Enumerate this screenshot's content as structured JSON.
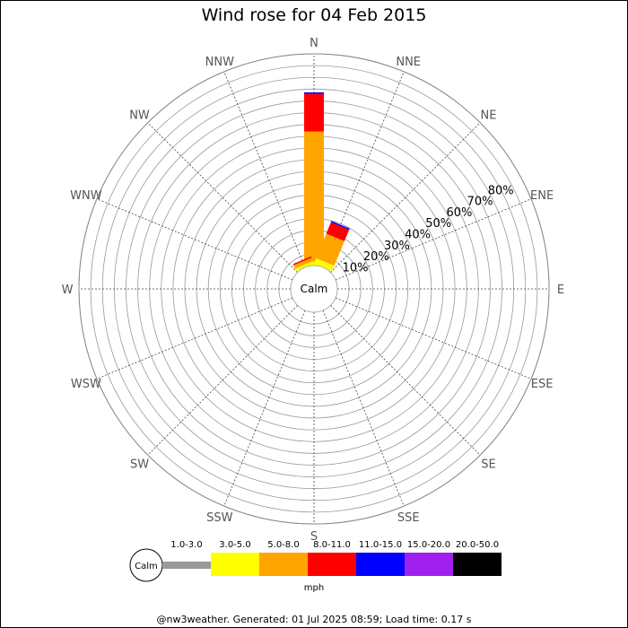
{
  "title": "Wind rose for 04 Feb 2015",
  "footer": "@nw3weather. Generated: 01 Jul 2025 08:59; Load time: 0.17 s",
  "chart_data": {
    "type": "wind-rose",
    "calm_label": "Calm",
    "unit_label": "mph",
    "directions": [
      "N",
      "NNE",
      "NE",
      "ENE",
      "E",
      "ESE",
      "SE",
      "SSE",
      "S",
      "SSW",
      "SW",
      "WSW",
      "W",
      "WNW",
      "NW",
      "NNW"
    ],
    "ring_labels": [
      "10%",
      "20%",
      "30%",
      "40%",
      "50%",
      "60%",
      "70%",
      "80%"
    ],
    "ring_values": [
      10,
      20,
      30,
      40,
      50,
      60,
      70,
      80
    ],
    "max_value": 90,
    "speed_bins": [
      {
        "label": "1.0-3.0",
        "color": "#999999"
      },
      {
        "label": "3.0-5.0",
        "color": "#ffff00"
      },
      {
        "label": "5.0-8.0",
        "color": "#ffa500"
      },
      {
        "label": "8.0-11.0",
        "color": "#ff0000"
      },
      {
        "label": "11.0-15.0",
        "color": "#0000ff"
      },
      {
        "label": "15.0-20.0",
        "color": "#a020f0"
      },
      {
        "label": "20.0-50.0",
        "color": "#000000"
      }
    ],
    "petals": [
      {
        "direction": "N",
        "values": [
          0,
          1.5,
          55.5,
          16,
          0.6,
          0,
          0
        ]
      },
      {
        "direction": "NNE",
        "values": [
          0,
          2.5,
          11.3,
          5.2,
          0.6,
          0,
          0
        ]
      },
      {
        "direction": "NNW",
        "values": [
          0,
          1.2,
          1.5,
          0.6,
          0,
          0,
          0
        ]
      }
    ]
  }
}
